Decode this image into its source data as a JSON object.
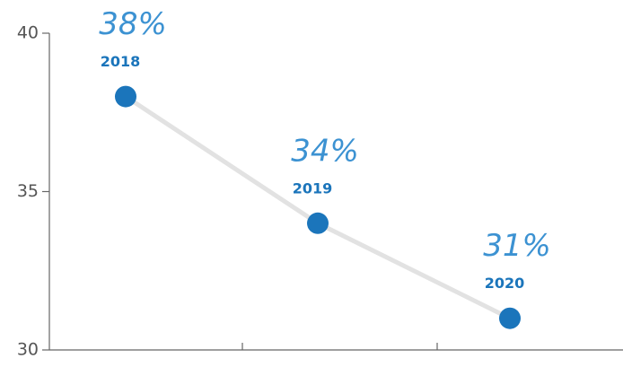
{
  "chart_data": {
    "type": "line",
    "categories": [
      "2018",
      "2019",
      "2020"
    ],
    "values": [
      38,
      34,
      31
    ],
    "value_labels": [
      "38%",
      "34%",
      "31%"
    ],
    "color": "#1b75bb",
    "line_color": "#e2e2e2",
    "axis_color": "#666666",
    "ylim": [
      30,
      40
    ],
    "yticks": [
      30,
      35,
      40
    ]
  }
}
